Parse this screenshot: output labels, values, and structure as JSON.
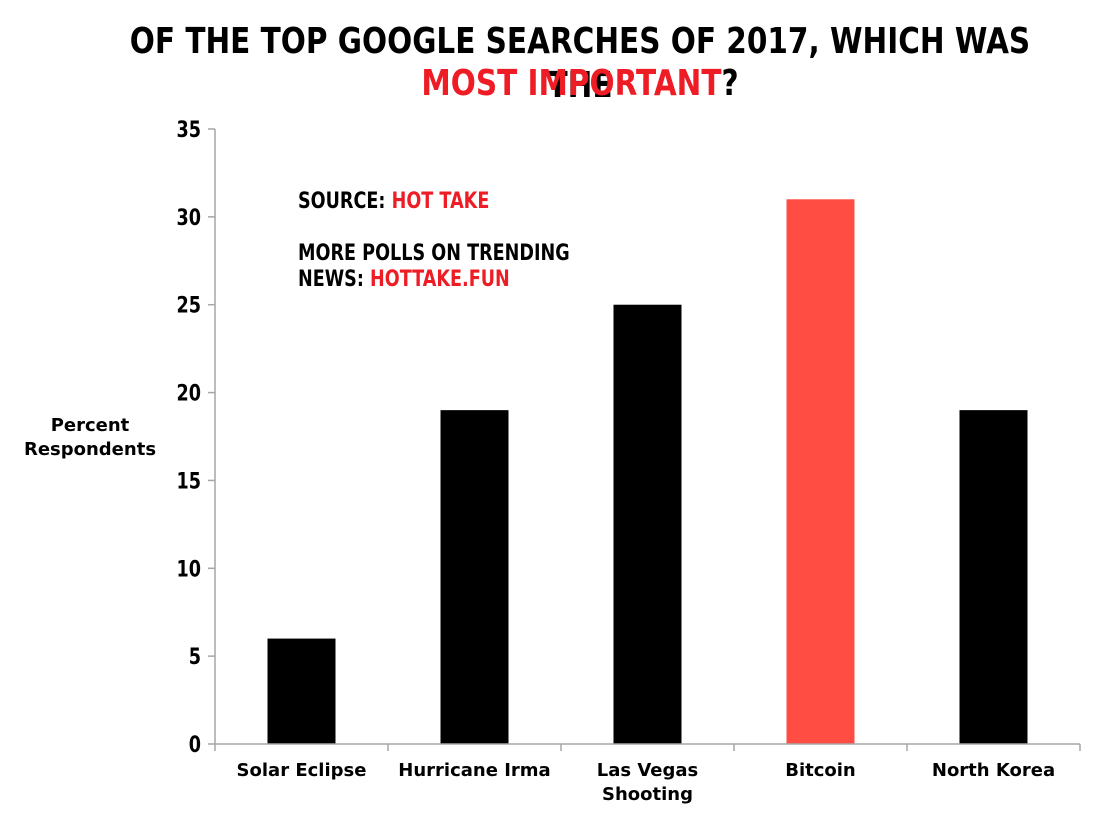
{
  "title": {
    "line1": "OF THE TOP GOOGLE SEARCHES OF 2017, WHICH WAS THE",
    "line2_highlight": "MOST IMPORTANT",
    "line2_suffix": "?"
  },
  "notes": {
    "source_label": "SOURCE:",
    "source_value": "HOT TAKE",
    "more_line1": "MORE POLLS ON TRENDING",
    "more_label": "NEWS:",
    "more_value": "HOTTAKE.FUN"
  },
  "colors": {
    "accent": "#ee1c25",
    "highlight_bar": "#ff4d44",
    "bar": "#000000",
    "axis": "#a6a6a6"
  },
  "chart_data": {
    "type": "bar",
    "categories": [
      "Solar Eclipse",
      "Hurricane Irma",
      "Las Vegas Shooting",
      "Bitcoin",
      "North Korea"
    ],
    "category_lines": [
      [
        "Solar Eclipse"
      ],
      [
        "Hurricane Irma"
      ],
      [
        "Las Vegas",
        "Shooting"
      ],
      [
        "Bitcoin"
      ],
      [
        "North Korea"
      ]
    ],
    "values": [
      6,
      19,
      25,
      31,
      19
    ],
    "highlight_index": 3,
    "ylabel": "Percent Respondents",
    "ylabel_lines": [
      "Percent",
      "Respondents"
    ],
    "xlabel": "",
    "ylim": [
      0,
      35
    ],
    "yticks": [
      0,
      5,
      10,
      15,
      20,
      25,
      30,
      35
    ],
    "grid": false,
    "legend": "none"
  }
}
